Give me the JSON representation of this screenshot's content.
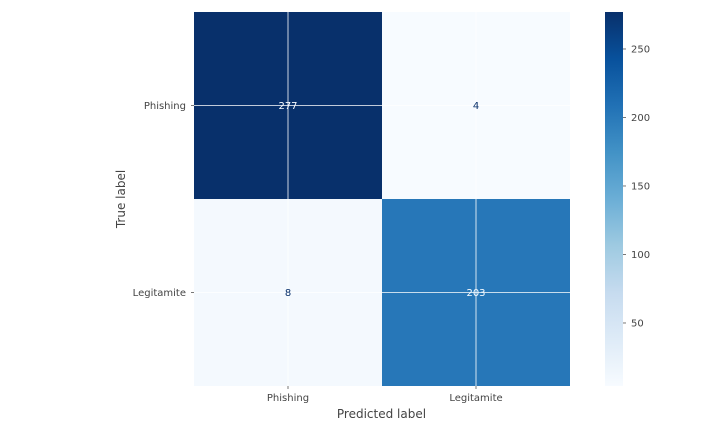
{
  "chart_data": {
    "type": "heatmap",
    "title": "",
    "xlabel": "Predicted label",
    "ylabel": "True label",
    "x_categories": [
      "Phishing",
      "Legitamite"
    ],
    "y_categories": [
      "Phishing",
      "Legitamite"
    ],
    "values": [
      [
        277,
        4
      ],
      [
        8,
        203
      ]
    ],
    "colormap": "Blues",
    "colorbar": {
      "min": 4,
      "max": 277,
      "ticks": [
        50,
        100,
        150,
        200,
        250
      ]
    },
    "grid": true
  }
}
